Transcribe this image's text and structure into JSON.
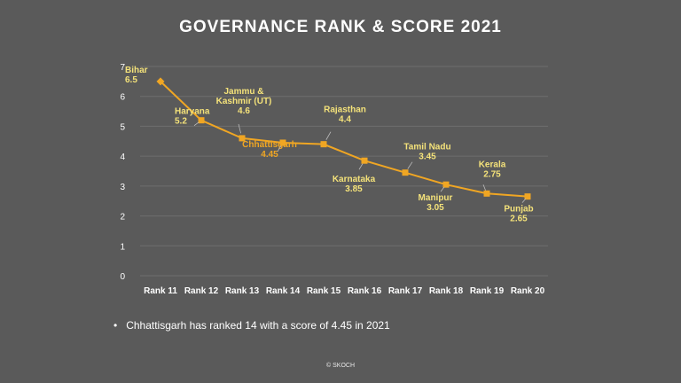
{
  "title": "GOVERNANCE RANK & SCORE 2021",
  "chart_data": {
    "type": "line",
    "title": "GOVERNANCE RANK & SCORE 2021",
    "categories": [
      "Rank 11",
      "Rank 12",
      "Rank 13",
      "Rank 14",
      "Rank 15",
      "Rank 16",
      "Rank 17",
      "Rank 18",
      "Rank 19",
      "Rank 20"
    ],
    "values": [
      6.5,
      5.2,
      4.6,
      4.45,
      4.4,
      3.85,
      3.45,
      3.05,
      2.75,
      2.65
    ],
    "point_labels": [
      {
        "name": [
          "Bihar"
        ],
        "value": "6.5",
        "highlight": false
      },
      {
        "name": [
          "Haryana"
        ],
        "value": "5.2",
        "highlight": false
      },
      {
        "name": [
          "Jammu &",
          "Kashmir (UT)"
        ],
        "value": "4.6",
        "highlight": false
      },
      {
        "name": [
          "Chhattisgarh"
        ],
        "value": "4.45",
        "highlight": true
      },
      {
        "name": [
          "Rajasthan"
        ],
        "value": "4.4",
        "highlight": false
      },
      {
        "name": [
          "Karnataka"
        ],
        "value": "3.85",
        "highlight": false
      },
      {
        "name": [
          "Tamil Nadu"
        ],
        "value": "3.45",
        "highlight": false
      },
      {
        "name": [
          "Manipur"
        ],
        "value": "3.05",
        "highlight": false
      },
      {
        "name": [
          "Kerala"
        ],
        "value": "2.75",
        "highlight": false
      },
      {
        "name": [
          "Punjab"
        ],
        "value": "2.65",
        "highlight": false
      }
    ],
    "ylim": [
      0,
      7
    ],
    "yticks": [
      0,
      1,
      2,
      3,
      4,
      5,
      6,
      7
    ],
    "grid": true,
    "legend": "none",
    "xlabel": "",
    "ylabel": ""
  },
  "colors": {
    "background": "#5a5a5a",
    "line": "#f0a623",
    "label": "#f4e27a",
    "highlight_label": "#f0a623",
    "grid": "#6e6e6e",
    "axis_text": "#ffffff"
  },
  "bullet_text": "Chhattisgarh has ranked 14 with a score of 4.45 in 2021",
  "bullet_glyph": "•",
  "footer": "© SKOCH"
}
